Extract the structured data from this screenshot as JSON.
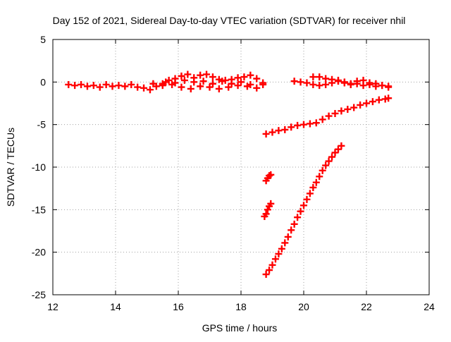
{
  "chart_data": {
    "type": "scatter",
    "title": "Day 152 of 2021, Sidereal Day-to-day VTEC variation (SDTVAR) for receiver nhil",
    "xlabel": "GPS time / hours",
    "ylabel": "SDTVAR / TECUs",
    "xlim": [
      12,
      24
    ],
    "ylim": [
      -25,
      5
    ],
    "xticks": [
      "12",
      "14",
      "16",
      "18",
      "20",
      "22",
      "24"
    ],
    "yticks": [
      "5",
      "0",
      "-5",
      "-10",
      "-15",
      "-20",
      "-25"
    ],
    "grid": true,
    "marker_color": "#ff0000",
    "series": [
      {
        "points": [
          [
            12.5,
            -0.3
          ],
          [
            12.7,
            -0.4
          ],
          [
            12.9,
            -0.3
          ],
          [
            13.1,
            -0.5
          ],
          [
            13.3,
            -0.4
          ],
          [
            13.5,
            -0.6
          ],
          [
            13.7,
            -0.3
          ],
          [
            13.9,
            -0.5
          ],
          [
            14.1,
            -0.4
          ],
          [
            14.3,
            -0.5
          ],
          [
            14.5,
            -0.3
          ],
          [
            14.7,
            -0.6
          ],
          [
            14.9,
            -0.7
          ],
          [
            15.1,
            -0.9
          ],
          [
            15.3,
            -0.5
          ],
          [
            15.5,
            -0.2
          ],
          [
            15.7,
            0.2
          ],
          [
            15.9,
            0.4
          ],
          [
            16.1,
            0.7
          ],
          [
            16.3,
            0.9
          ],
          [
            16.5,
            0.5
          ],
          [
            16.7,
            0.8
          ],
          [
            16.9,
            0.9
          ],
          [
            17.1,
            0.6
          ],
          [
            17.3,
            0.3
          ],
          [
            17.5,
            0.2
          ],
          [
            17.7,
            0.3
          ],
          [
            17.9,
            0.5
          ],
          [
            18.1,
            0.6
          ],
          [
            18.3,
            0.8
          ],
          [
            18.5,
            0.4
          ],
          [
            18.7,
            -0.1
          ],
          [
            15.2,
            -0.2
          ],
          [
            15.5,
            -0.4
          ],
          [
            15.8,
            -0.3
          ],
          [
            16.1,
            -0.6
          ],
          [
            16.4,
            -0.8
          ],
          [
            16.7,
            -0.5
          ],
          [
            17.0,
            -0.6
          ],
          [
            17.3,
            -0.8
          ],
          [
            17.6,
            -0.6
          ],
          [
            17.9,
            -0.4
          ],
          [
            18.2,
            -0.5
          ],
          [
            18.5,
            -0.7
          ],
          [
            18.7,
            -0.3
          ],
          [
            15.6,
            0.0
          ],
          [
            15.9,
            -0.1
          ],
          [
            16.2,
            0.2
          ],
          [
            16.5,
            0.0
          ],
          [
            16.8,
            0.1
          ],
          [
            17.1,
            -0.2
          ],
          [
            17.4,
            0.1
          ],
          [
            17.7,
            -0.2
          ],
          [
            18.0,
            0.0
          ],
          [
            18.3,
            -0.3
          ],
          [
            19.7,
            0.1
          ],
          [
            19.9,
            0.0
          ],
          [
            20.1,
            -0.1
          ],
          [
            20.3,
            -0.3
          ],
          [
            20.5,
            -0.4
          ],
          [
            20.7,
            -0.3
          ],
          [
            20.9,
            -0.1
          ],
          [
            21.1,
            0.2
          ],
          [
            21.3,
            0.0
          ],
          [
            21.5,
            -0.2
          ],
          [
            21.7,
            0.1
          ],
          [
            21.9,
            0.2
          ],
          [
            22.1,
            -0.1
          ],
          [
            22.3,
            -0.2
          ],
          [
            22.5,
            -0.4
          ],
          [
            22.7,
            -0.5
          ],
          [
            20.3,
            0.6
          ],
          [
            20.5,
            0.6
          ],
          [
            20.7,
            0.4
          ],
          [
            20.9,
            0.3
          ],
          [
            21.1,
            0.1
          ],
          [
            21.3,
            -0.1
          ],
          [
            21.5,
            -0.3
          ],
          [
            21.7,
            -0.2
          ],
          [
            21.9,
            -0.4
          ],
          [
            22.1,
            -0.3
          ],
          [
            22.3,
            -0.5
          ],
          [
            22.5,
            -0.4
          ],
          [
            22.7,
            -0.6
          ],
          [
            18.8,
            -6.1
          ],
          [
            19.0,
            -5.9
          ],
          [
            19.2,
            -5.7
          ],
          [
            19.4,
            -5.6
          ],
          [
            19.6,
            -5.3
          ],
          [
            19.8,
            -5.1
          ],
          [
            20.0,
            -5.0
          ],
          [
            20.2,
            -4.9
          ],
          [
            20.4,
            -4.8
          ],
          [
            20.6,
            -4.4
          ],
          [
            20.8,
            -4.0
          ],
          [
            21.0,
            -3.7
          ],
          [
            21.2,
            -3.4
          ],
          [
            21.4,
            -3.2
          ],
          [
            21.6,
            -3.0
          ],
          [
            21.8,
            -2.7
          ],
          [
            22.0,
            -2.5
          ],
          [
            22.2,
            -2.3
          ],
          [
            22.4,
            -2.1
          ],
          [
            22.6,
            -2.0
          ],
          [
            22.7,
            -1.9
          ],
          [
            18.8,
            -22.6
          ],
          [
            18.9,
            -22.1
          ],
          [
            19.0,
            -21.5
          ],
          [
            19.1,
            -20.8
          ],
          [
            19.2,
            -20.2
          ],
          [
            19.3,
            -19.6
          ],
          [
            19.4,
            -18.9
          ],
          [
            19.5,
            -18.2
          ],
          [
            19.6,
            -17.4
          ],
          [
            19.7,
            -16.7
          ],
          [
            19.8,
            -15.9
          ],
          [
            19.9,
            -15.2
          ],
          [
            20.0,
            -14.5
          ],
          [
            20.1,
            -13.8
          ],
          [
            20.2,
            -13.1
          ],
          [
            20.3,
            -12.4
          ],
          [
            20.4,
            -11.8
          ],
          [
            20.5,
            -11.1
          ],
          [
            20.6,
            -10.4
          ],
          [
            20.7,
            -9.8
          ],
          [
            20.8,
            -9.3
          ],
          [
            20.9,
            -8.8
          ],
          [
            21.0,
            -8.3
          ],
          [
            21.1,
            -7.9
          ],
          [
            21.2,
            -7.5
          ],
          [
            18.8,
            -11.6
          ],
          [
            18.85,
            -11.3
          ],
          [
            18.9,
            -11.0
          ],
          [
            18.95,
            -10.9
          ],
          [
            18.75,
            -15.8
          ],
          [
            18.8,
            -15.5
          ],
          [
            18.85,
            -15.0
          ],
          [
            18.9,
            -14.6
          ],
          [
            18.95,
            -14.3
          ]
        ]
      }
    ]
  }
}
